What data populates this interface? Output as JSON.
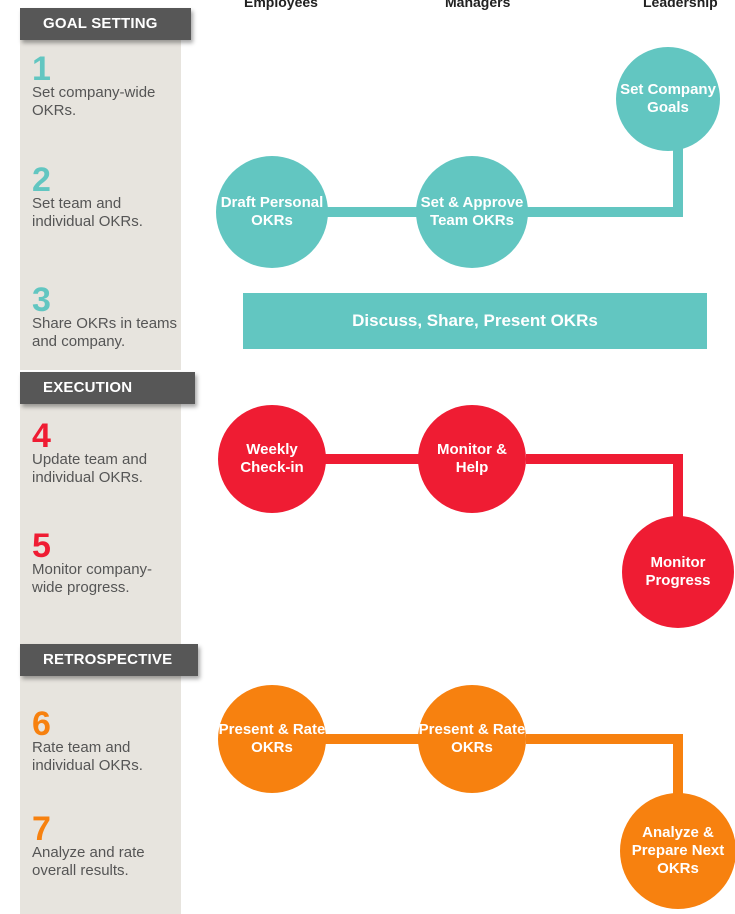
{
  "columns": {
    "employees": "Employees",
    "managers": "Managers",
    "leadership": "Leadership"
  },
  "colors": {
    "goal": "#62c6c1",
    "execution": "#ef1c33",
    "retrospective": "#f7810f",
    "header_bg": "#575757",
    "panel_bg": "#e7e4de"
  },
  "sections": {
    "goal_setting": "GOAL SETTING",
    "execution": "EXECUTION",
    "retrospective": "RETROSPECTIVE"
  },
  "steps": [
    {
      "num": "1",
      "text": "Set company-wide OKRs."
    },
    {
      "num": "2",
      "text": "Set team and individual OKRs."
    },
    {
      "num": "3",
      "text": "Share OKRs in teams and company."
    },
    {
      "num": "4",
      "text": "Update team and individual OKRs."
    },
    {
      "num": "5",
      "text": "Monitor company-wide progress."
    },
    {
      "num": "6",
      "text": "Rate team and individual OKRs."
    },
    {
      "num": "7",
      "text": "Analyze and rate overall results."
    }
  ],
  "nodes": {
    "set_company_goals": "Set Company Goals",
    "draft_personal_okrs": "Draft Personal OKRs",
    "set_approve_team_okrs": "Set & Approve Team OKRs",
    "discuss_share_present": "Discuss, Share, Present OKRs",
    "weekly_checkin": "Weekly Check-in",
    "monitor_help": "Monitor & Help",
    "monitor_progress": "Monitor Progress",
    "present_rate_employees": "Present & Rate OKRs",
    "present_rate_managers": "Present & Rate OKRs",
    "analyze_prepare": "Analyze & Prepare Next OKRs"
  }
}
